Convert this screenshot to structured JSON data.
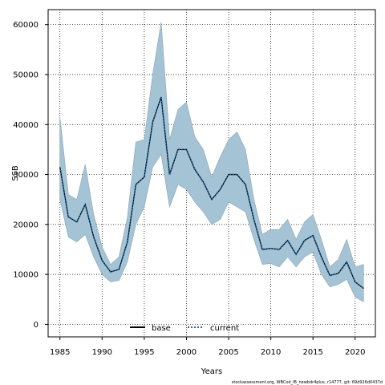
{
  "chart_data": {
    "type": "line",
    "title": "",
    "xlabel": "Years",
    "ylabel": "SSB",
    "xlim": [
      1983.6,
      2022.4
    ],
    "ylim": [
      -2500,
      63000
    ],
    "x_ticks": [
      1985,
      1990,
      1995,
      2000,
      2005,
      2010,
      2015,
      2020
    ],
    "y_ticks": [
      0,
      10000,
      20000,
      30000,
      40000,
      50000,
      60000
    ],
    "x_tick_labels": [
      "1985",
      "1990",
      "1995",
      "2000",
      "2005",
      "2010",
      "2015",
      "2020"
    ],
    "y_tick_labels": [
      "0",
      "10000",
      "20000",
      "30000",
      "40000",
      "50000",
      "60000"
    ],
    "grid": true,
    "legend_position": "bottom-center",
    "x": [
      1985,
      1986,
      1987,
      1988,
      1989,
      1990,
      1991,
      1992,
      1993,
      1994,
      1995,
      1996,
      1997,
      1998,
      1999,
      2000,
      2001,
      2002,
      2003,
      2004,
      2005,
      2006,
      2007,
      2008,
      2009,
      2010,
      2011,
      2012,
      2013,
      2014,
      2015,
      2016,
      2017,
      2018,
      2019,
      2020,
      2021
    ],
    "band": {
      "color": "#a4c3d4",
      "upper": [
        41500,
        26000,
        25000,
        32000,
        22000,
        15500,
        12000,
        13500,
        21500,
        36500,
        37000,
        50000,
        60500,
        37000,
        43000,
        44500,
        37500,
        35000,
        29500,
        33500,
        37000,
        38500,
        35000,
        25000,
        18000,
        19000,
        19000,
        21000,
        17000,
        20500,
        22000,
        17000,
        11500,
        13000,
        17000,
        11500,
        12000
      ],
      "lower": [
        25000,
        17500,
        16500,
        18000,
        13500,
        10000,
        8500,
        8800,
        12500,
        20000,
        23500,
        31500,
        34000,
        23500,
        28000,
        27000,
        24500,
        22500,
        20000,
        21000,
        24500,
        23500,
        22500,
        17000,
        12000,
        12200,
        11500,
        13500,
        11500,
        13500,
        14500,
        10000,
        7500,
        8000,
        9000,
        5500,
        4500
      ]
    },
    "series": [
      {
        "name": "base",
        "color": "#000000",
        "style": "solid",
        "values": [
          31500,
          21500,
          20500,
          24000,
          17500,
          12800,
          10500,
          11000,
          16500,
          28000,
          29500,
          40500,
          45500,
          30000,
          35000,
          35000,
          31000,
          28500,
          25000,
          27000,
          30000,
          30000,
          28000,
          21000,
          15000,
          15200,
          15000,
          16800,
          14000,
          16800,
          17800,
          13500,
          9800,
          10200,
          12500,
          8500,
          7200
        ]
      },
      {
        "name": "current",
        "color": "#1c6fb5",
        "style": "dotted",
        "values": [
          31500,
          21500,
          20500,
          24000,
          17500,
          12800,
          10500,
          11000,
          16500,
          28000,
          29500,
          40500,
          45500,
          30000,
          35000,
          35000,
          31000,
          28500,
          25000,
          27000,
          30000,
          30000,
          28000,
          21000,
          15000,
          15200,
          15000,
          16800,
          14000,
          16800,
          17800,
          13500,
          9800,
          10200,
          12500,
          8500,
          7200
        ]
      }
    ]
  },
  "footer": "stockassessment.org, WBCod_IB_newbdr4plus, r14777, git: 69d926d0437d"
}
